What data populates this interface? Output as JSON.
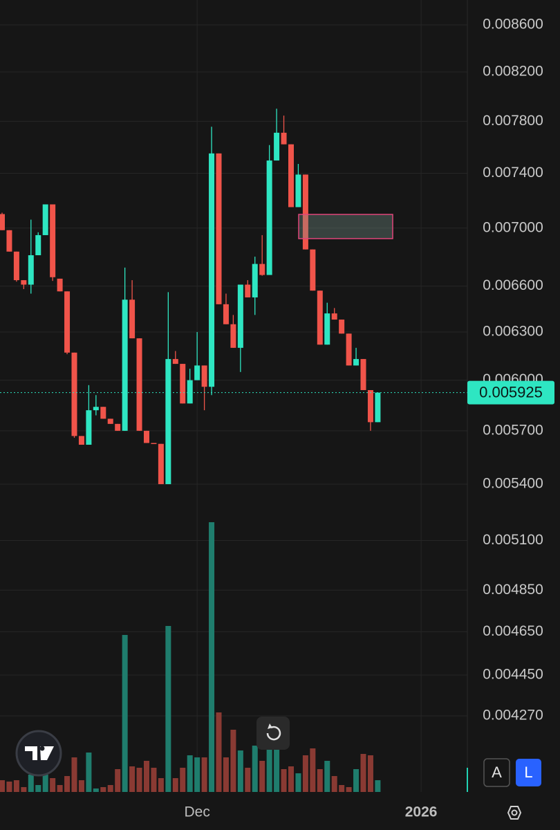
{
  "chart_data": {
    "type": "candlestick",
    "log_scale": true,
    "grid": true,
    "up_color": "#2ee6c2",
    "down_color": "#f0544a",
    "volume_up_color": "#1f7d6d",
    "volume_down_color": "#8a3a33",
    "open": [
      0.0071,
      0.006985,
      0.006835,
      0.00664,
      0.00661,
      0.00681,
      0.00695,
      0.00717,
      0.00665,
      0.006565,
      0.00617,
      0.00567,
      0.00562,
      0.00582,
      0.00584,
      0.00577,
      0.00574,
      0.0057,
      0.00651,
      0.00626,
      0.0057,
      0.00563,
      0.005625,
      0.0054,
      0.00613,
      0.0061,
      0.00586,
      0.006,
      0.00609,
      0.00596,
      0.00755,
      0.00648,
      0.00635,
      0.0062,
      0.00661,
      0.006525,
      0.00675,
      0.006675,
      0.007496,
      0.00771,
      0.00762,
      0.00715,
      0.00739,
      0.00685,
      0.00657,
      0.00622,
      0.00642,
      0.00638,
      0.00629,
      0.00609,
      0.00613,
      0.00594,
      0.00575
    ],
    "high": [
      0.00711,
      0.006985,
      0.006835,
      0.00664,
      0.00706,
      0.00697,
      0.00717,
      0.00717,
      0.00665,
      0.006565,
      0.00617,
      0.00567,
      0.00597,
      0.00591,
      0.00584,
      0.00577,
      0.00574,
      0.006725,
      0.00664,
      0.00626,
      0.0057,
      0.00563,
      0.005625,
      0.00656,
      0.00618,
      0.0061,
      0.00607,
      0.0063,
      0.00609,
      0.007757,
      0.00755,
      0.00655,
      0.00641,
      0.00661,
      0.00664,
      0.0068,
      0.00695,
      0.007614,
      0.0079,
      0.007845,
      0.00762,
      0.00747,
      0.00739,
      0.00685,
      0.00657,
      0.00649,
      0.006455,
      0.00638,
      0.00629,
      0.0062,
      0.00613,
      0.00594,
      0.00592
    ],
    "low": [
      0.006985,
      0.006835,
      0.00663,
      0.00658,
      0.00655,
      0.00681,
      0.00695,
      0.006635,
      0.006565,
      0.00616,
      0.00566,
      0.00562,
      0.00562,
      0.00579,
      0.00577,
      0.00574,
      0.0057,
      0.0057,
      0.00626,
      0.0057,
      0.00563,
      0.005625,
      0.0054,
      0.0054,
      0.0061,
      0.00586,
      0.00586,
      0.006,
      0.00582,
      0.00591,
      0.00648,
      0.00635,
      0.0062,
      0.00605,
      0.006525,
      0.00641,
      0.00667,
      0.006675,
      0.007496,
      0.00762,
      0.00715,
      0.00715,
      0.00685,
      0.00657,
      0.00622,
      0.00622,
      0.00638,
      0.00629,
      0.00609,
      0.00609,
      0.00594,
      0.0057,
      0.00575
    ],
    "close": [
      0.006985,
      0.006835,
      0.00664,
      0.00661,
      0.00681,
      0.00695,
      0.00717,
      0.00666,
      0.006565,
      0.00617,
      0.00567,
      0.00562,
      0.00582,
      0.00584,
      0.00577,
      0.00574,
      0.0057,
      0.00651,
      0.00626,
      0.0057,
      0.00563,
      0.005625,
      0.0054,
      0.00613,
      0.0061,
      0.00586,
      0.006,
      0.00609,
      0.00596,
      0.00755,
      0.00648,
      0.00635,
      0.0062,
      0.00661,
      0.006525,
      0.00675,
      0.006675,
      0.007496,
      0.00771,
      0.00762,
      0.00715,
      0.00739,
      0.00685,
      0.00657,
      0.00622,
      0.00642,
      0.00638,
      0.00629,
      0.00609,
      0.00613,
      0.00594,
      0.00575,
      0.005925
    ],
    "volume": [
      17,
      15,
      17,
      7,
      25,
      10,
      25,
      20,
      10,
      23,
      50,
      17,
      57,
      5,
      7,
      10,
      33,
      227,
      37,
      35,
      45,
      35,
      20,
      240,
      20,
      35,
      53,
      50,
      50,
      390,
      115,
      50,
      90,
      60,
      35,
      67,
      45,
      67,
      63,
      33,
      37,
      27,
      53,
      63,
      33,
      45,
      23,
      10,
      7,
      33,
      55,
      53,
      17
    ],
    "ylim": [
      0.003953,
      0.00882
    ],
    "yticks": [
      {
        "value": 0.0086,
        "label": "0.008600"
      },
      {
        "value": 0.0082,
        "label": "0.008200"
      },
      {
        "value": 0.0078,
        "label": "0.007800"
      },
      {
        "value": 0.0074,
        "label": "0.007400"
      },
      {
        "value": 0.007,
        "label": "0.007000"
      },
      {
        "value": 0.0066,
        "label": "0.006600"
      },
      {
        "value": 0.0063,
        "label": "0.006300"
      },
      {
        "value": 0.006,
        "label": "0.006000"
      },
      {
        "value": 0.0057,
        "label": "0.005700"
      },
      {
        "value": 0.0054,
        "label": "0.005400"
      },
      {
        "value": 0.0051,
        "label": "0.005100"
      },
      {
        "value": 0.00485,
        "label": "0.004850"
      },
      {
        "value": 0.00465,
        "label": "0.004650"
      },
      {
        "value": 0.00445,
        "label": "0.004450"
      },
      {
        "value": 0.00427,
        "label": "0.004270"
      }
    ],
    "last_price": 0.005925,
    "x_labels": [
      {
        "position": 27,
        "label": "Dec"
      },
      {
        "position": 58,
        "label": "2026"
      }
    ]
  },
  "toolbar": {
    "auto": "A",
    "log": "L"
  }
}
